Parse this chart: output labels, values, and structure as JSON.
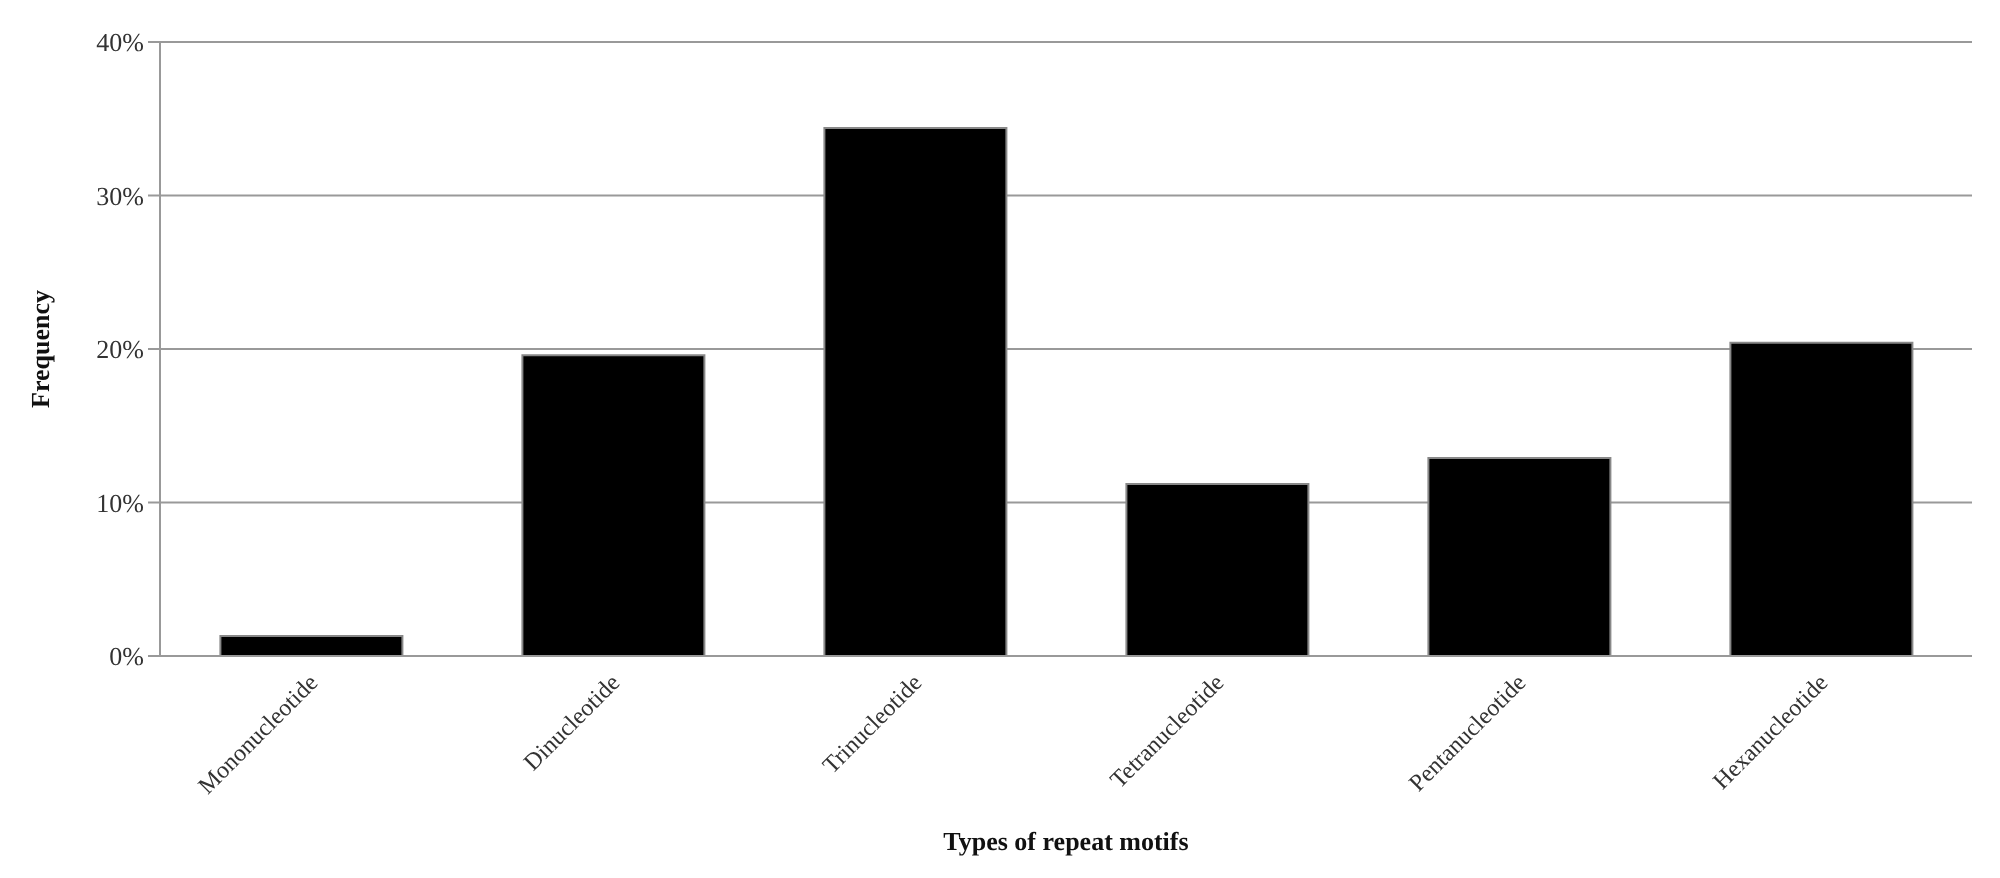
{
  "chart_data": {
    "type": "bar",
    "xlabel": "Types of repeat motifs",
    "ylabel": "Frequency",
    "categories": [
      "Mononucleotide",
      "Dinucleotide",
      "Trinucleotide",
      "Tetranucleotide",
      "Pentanucleotide",
      "Hexanucleotide"
    ],
    "values": [
      1.3,
      19.6,
      34.4,
      11.2,
      12.9,
      20.4
    ],
    "color": "#000000",
    "ylim": [
      0,
      40
    ],
    "yticks": [
      {
        "value": 0,
        "label": "0%"
      },
      {
        "value": 10,
        "label": "10%"
      },
      {
        "value": 20,
        "label": "20%"
      },
      {
        "value": 30,
        "label": "30%"
      },
      {
        "value": 40,
        "label": "40%"
      }
    ],
    "grid": "y",
    "legend": false
  }
}
